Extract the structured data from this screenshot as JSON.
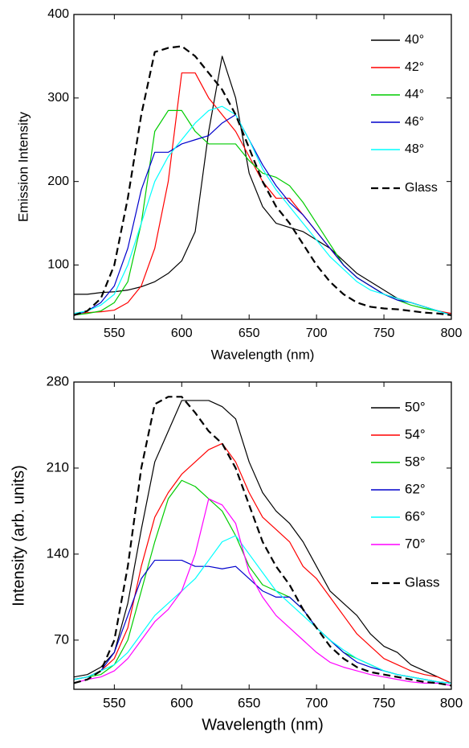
{
  "chart_data": [
    {
      "type": "line",
      "xlabel": "Wavelength (nm)",
      "ylabel": "Emission Intensity",
      "x": [
        520,
        530,
        540,
        550,
        560,
        570,
        580,
        590,
        600,
        610,
        620,
        630,
        640,
        650,
        660,
        670,
        680,
        690,
        700,
        710,
        720,
        730,
        740,
        750,
        760,
        770,
        780,
        790,
        800
      ],
      "xlim": [
        520,
        800
      ],
      "xticks": [
        550,
        600,
        650,
        700,
        750,
        800
      ],
      "ylim": [
        35,
        400
      ],
      "yticks": [
        100,
        200,
        300,
        400
      ],
      "legend": "upper right",
      "series": [
        {
          "name": "40°",
          "color": "#000000",
          "values": [
            65,
            65,
            67,
            68,
            70,
            74,
            80,
            90,
            105,
            140,
            260,
            350,
            300,
            210,
            170,
            150,
            145,
            140,
            130,
            120,
            105,
            90,
            80,
            70,
            60,
            55,
            50,
            45,
            40
          ]
        },
        {
          "name": "42°",
          "color": "#ff0000",
          "values": [
            42,
            43,
            44,
            46,
            55,
            75,
            120,
            200,
            330,
            330,
            300,
            280,
            260,
            230,
            200,
            180,
            180,
            160,
            140,
            120,
            100,
            85,
            75,
            65,
            60,
            55,
            50,
            45,
            42
          ]
        },
        {
          "name": "44°",
          "color": "#00cc00",
          "values": [
            40,
            42,
            45,
            55,
            80,
            150,
            260,
            285,
            285,
            260,
            245,
            245,
            245,
            225,
            210,
            205,
            195,
            175,
            150,
            125,
            100,
            85,
            75,
            65,
            58,
            52,
            48,
            45,
            40
          ]
        },
        {
          "name": "46°",
          "color": "#0000cc",
          "values": [
            40,
            45,
            55,
            75,
            120,
            190,
            235,
            235,
            245,
            250,
            255,
            270,
            280,
            250,
            220,
            195,
            175,
            160,
            140,
            120,
            100,
            85,
            75,
            65,
            58,
            55,
            50,
            45,
            40
          ]
        },
        {
          "name": "48°",
          "color": "#00ffff",
          "values": [
            42,
            45,
            52,
            65,
            100,
            150,
            200,
            230,
            250,
            270,
            285,
            290,
            280,
            250,
            215,
            190,
            170,
            150,
            130,
            110,
            95,
            80,
            70,
            65,
            60,
            55,
            50,
            45,
            40
          ]
        },
        {
          "name": "Glass",
          "color": "#000000",
          "dash": true,
          "values": [
            40,
            45,
            60,
            100,
            180,
            280,
            355,
            360,
            362,
            350,
            330,
            310,
            280,
            240,
            200,
            170,
            150,
            125,
            100,
            80,
            65,
            55,
            50,
            48,
            47,
            45,
            43,
            42,
            40
          ]
        }
      ]
    },
    {
      "type": "line",
      "xlabel": "Wavelength (nm)",
      "ylabel": "Intensity (arb. units)",
      "x": [
        520,
        530,
        540,
        550,
        560,
        570,
        580,
        590,
        600,
        610,
        620,
        630,
        640,
        650,
        660,
        670,
        680,
        690,
        700,
        710,
        720,
        730,
        740,
        750,
        760,
        770,
        780,
        790,
        800
      ],
      "xlim": [
        520,
        800
      ],
      "xticks": [
        550,
        600,
        650,
        700,
        750,
        800
      ],
      "ylim": [
        30,
        280
      ],
      "yticks": [
        70,
        140,
        210,
        280
      ],
      "legend": "upper right",
      "series": [
        {
          "name": "50°",
          "color": "#000000",
          "values": [
            40,
            42,
            48,
            60,
            100,
            160,
            215,
            240,
            265,
            265,
            265,
            260,
            250,
            215,
            190,
            175,
            165,
            150,
            130,
            110,
            100,
            90,
            75,
            65,
            60,
            50,
            45,
            40,
            35
          ]
        },
        {
          "name": "54°",
          "color": "#ff0000",
          "values": [
            38,
            40,
            45,
            55,
            80,
            130,
            170,
            190,
            205,
            215,
            225,
            230,
            215,
            190,
            170,
            160,
            150,
            130,
            120,
            105,
            90,
            75,
            65,
            55,
            50,
            45,
            42,
            40,
            35
          ]
        },
        {
          "name": "58°",
          "color": "#00cc00",
          "values": [
            38,
            40,
            42,
            50,
            70,
            110,
            150,
            185,
            200,
            195,
            185,
            175,
            155,
            130,
            115,
            110,
            105,
            95,
            80,
            70,
            60,
            55,
            50,
            45,
            42,
            40,
            38,
            36,
            35
          ]
        },
        {
          "name": "62°",
          "color": "#0000cc",
          "values": [
            38,
            40,
            45,
            60,
            90,
            120,
            135,
            135,
            135,
            130,
            130,
            128,
            130,
            120,
            110,
            105,
            105,
            95,
            80,
            70,
            60,
            52,
            48,
            45,
            42,
            40,
            38,
            36,
            35
          ]
        },
        {
          "name": "66°",
          "color": "#00ffff",
          "values": [
            38,
            40,
            45,
            50,
            60,
            75,
            90,
            100,
            110,
            120,
            135,
            150,
            155,
            140,
            125,
            110,
            100,
            90,
            80,
            70,
            62,
            55,
            50,
            45,
            42,
            40,
            38,
            36,
            35
          ]
        },
        {
          "name": "70°",
          "color": "#ff00ff",
          "values": [
            35,
            38,
            40,
            45,
            55,
            70,
            85,
            95,
            110,
            140,
            185,
            180,
            165,
            125,
            105,
            90,
            80,
            70,
            60,
            52,
            48,
            45,
            42,
            40,
            38,
            36,
            35,
            35,
            33
          ]
        },
        {
          "name": "Glass",
          "color": "#000000",
          "dash": true,
          "values": [
            35,
            38,
            45,
            70,
            130,
            210,
            262,
            268,
            268,
            255,
            240,
            230,
            210,
            180,
            150,
            130,
            115,
            95,
            80,
            65,
            55,
            48,
            44,
            42,
            40,
            38,
            36,
            35,
            33
          ]
        }
      ]
    }
  ]
}
